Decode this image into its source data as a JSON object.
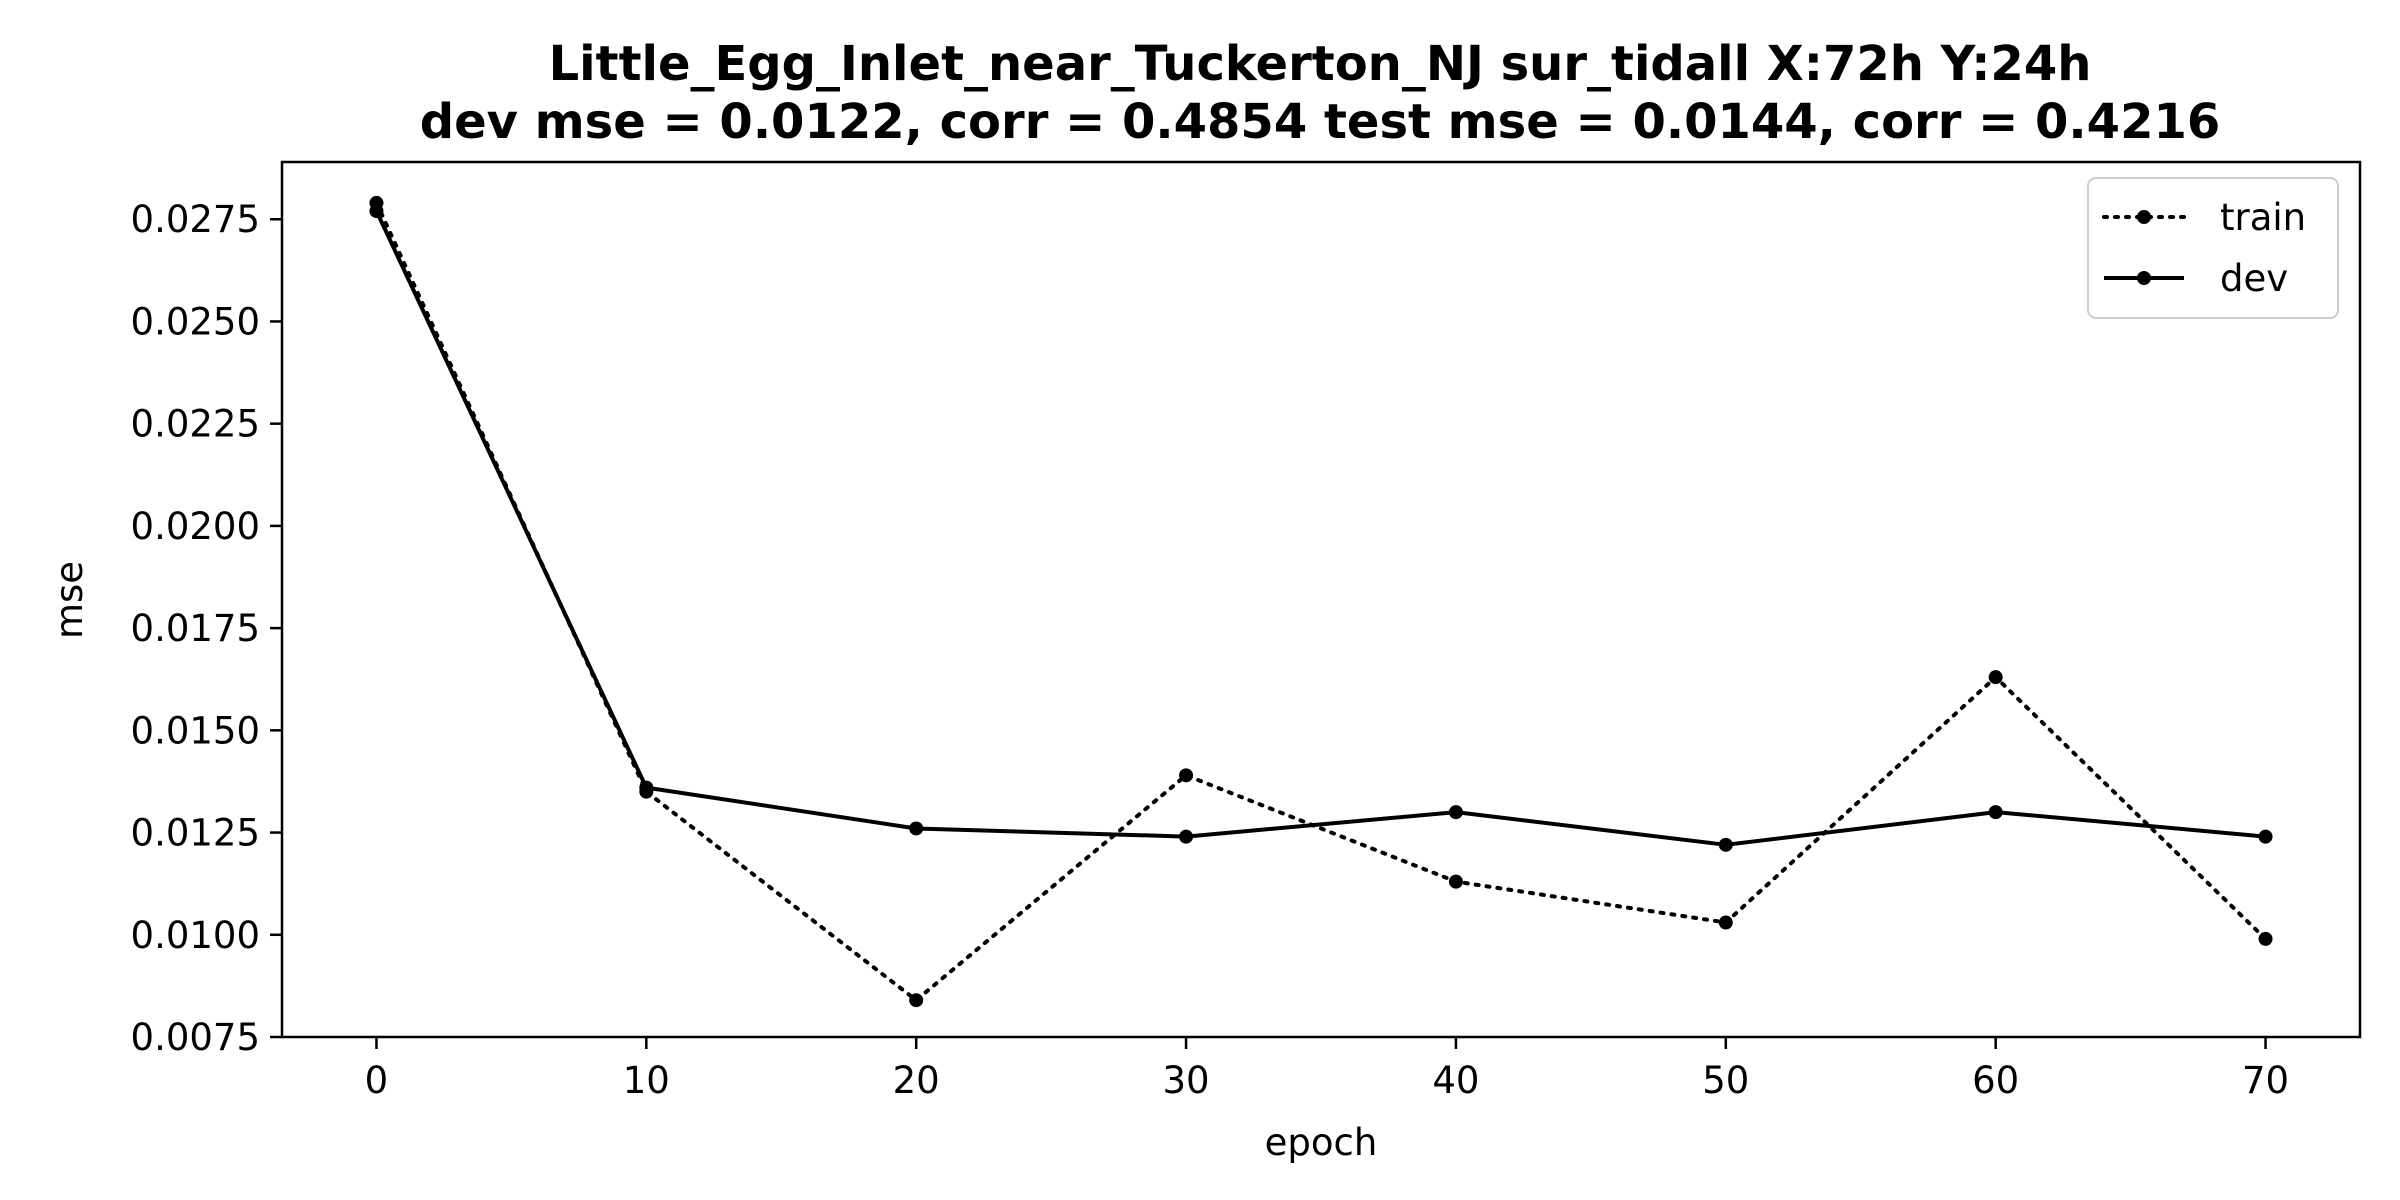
{
  "chart_data": {
    "type": "line",
    "title_line1": "Little_Egg_Inlet_near_Tuckerton_NJ   sur_tidall   X:72h   Y:24h",
    "title_line2": "dev mse = 0.0122, corr = 0.4854   test mse = 0.0144, corr = 0.4216",
    "xlabel": "epoch",
    "ylabel": "mse",
    "xlim": [
      -3.5,
      73.5
    ],
    "ylim": [
      0.0075,
      0.0289
    ],
    "x_ticks": [
      0,
      10,
      20,
      30,
      40,
      50,
      60,
      70
    ],
    "x_tick_labels": [
      "0",
      "10",
      "20",
      "30",
      "40",
      "50",
      "60",
      "70"
    ],
    "y_ticks": [
      0.0075,
      0.01,
      0.0125,
      0.015,
      0.0175,
      0.02,
      0.0225,
      0.025,
      0.0275
    ],
    "y_tick_labels": [
      "0.0075",
      "0.0100",
      "0.0125",
      "0.0150",
      "0.0175",
      "0.0200",
      "0.0225",
      "0.0250",
      "0.0275"
    ],
    "grid": false,
    "legend_position": "top-right",
    "x": [
      0,
      10,
      20,
      30,
      40,
      50,
      60,
      70
    ],
    "series": [
      {
        "name": "train",
        "style": "dotted",
        "color": "#000000",
        "values": [
          0.0279,
          0.0135,
          0.0084,
          0.0139,
          0.0113,
          0.0103,
          0.0163,
          0.0099
        ]
      },
      {
        "name": "dev",
        "style": "solid",
        "color": "#000000",
        "values": [
          0.0277,
          0.0136,
          0.0126,
          0.0124,
          0.013,
          0.0122,
          0.013,
          0.0124
        ]
      }
    ]
  }
}
